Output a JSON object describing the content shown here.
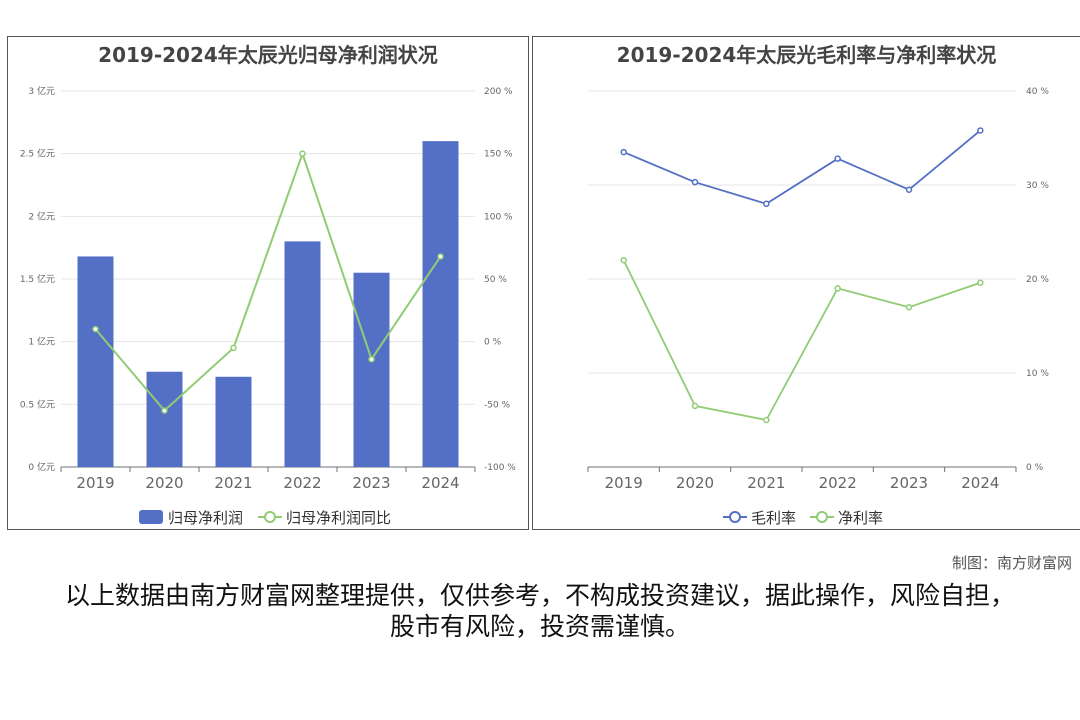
{
  "footer": {
    "credit": "制图：南方财富网",
    "disclaimer": "以上数据由南方财富网整理提供，仅供参考，不构成投资建议，据此操作，风险自担，股市有风险，投资需谨慎。"
  },
  "colors": {
    "bar": "#5470c6",
    "line_blue": "#5470c6",
    "line_green": "#91cc75"
  },
  "chart_data": [
    {
      "type": "bar",
      "title": "2019-2024年太辰光归母净利润状况",
      "categories": [
        "2019",
        "2020",
        "2021",
        "2022",
        "2023",
        "2024"
      ],
      "series": [
        {
          "name": "归母净利润",
          "type": "bar",
          "axis": "left",
          "values": [
            1.68,
            0.76,
            0.72,
            1.8,
            1.55,
            2.6
          ]
        },
        {
          "name": "归母净利润同比",
          "type": "line",
          "axis": "right",
          "values": [
            10,
            -55,
            -5,
            150,
            -14,
            68
          ]
        }
      ],
      "y_left": {
        "min": 0,
        "max": 3,
        "ticks": [
          "0 亿元",
          "0.5 亿元",
          "1 亿元",
          "1.5 亿元",
          "2 亿元",
          "2.5 亿元",
          "3 亿元"
        ]
      },
      "y_right": {
        "min": -100,
        "max": 200,
        "ticks": [
          "-100 %",
          "-50 %",
          "0 %",
          "50 %",
          "100 %",
          "150 %",
          "200 %"
        ]
      },
      "legend_position": "bottom-center",
      "grid": true
    },
    {
      "type": "line",
      "title": "2019-2024年太辰光毛利率与净利率状况",
      "categories": [
        "2019",
        "2020",
        "2021",
        "2022",
        "2023",
        "2024"
      ],
      "series": [
        {
          "name": "毛利率",
          "values": [
            33.5,
            30.3,
            28,
            32.8,
            29.5,
            35.8
          ]
        },
        {
          "name": "净利率",
          "values": [
            22,
            6.5,
            5,
            19,
            17,
            19.6
          ]
        }
      ],
      "y_right": {
        "min": 0,
        "max": 40,
        "ticks": [
          "0 %",
          "10 %",
          "20 %",
          "30 %",
          "40 %"
        ]
      },
      "legend_position": "bottom-center",
      "grid": true
    }
  ]
}
